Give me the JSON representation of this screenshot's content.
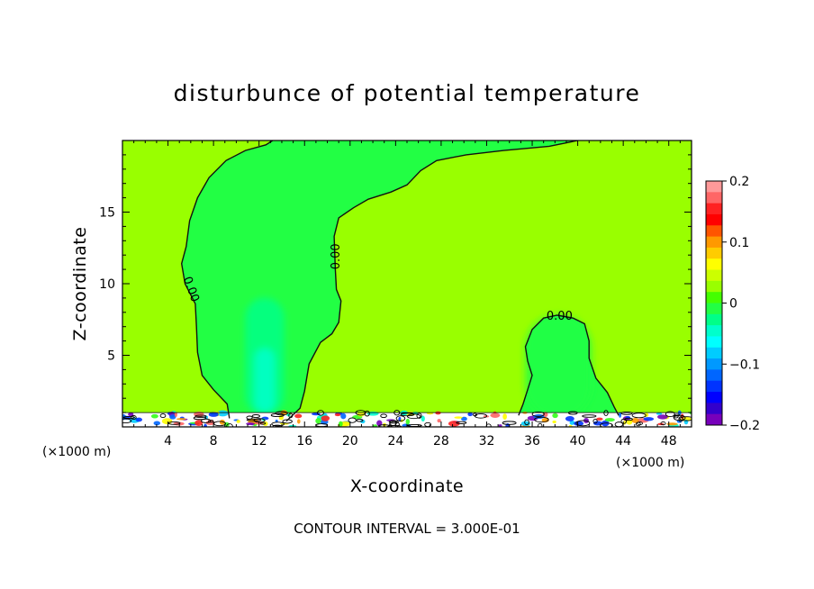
{
  "chart_data": {
    "type": "heatmap",
    "title": "disturbunce of potential temperature",
    "xlabel": "X-coordinate",
    "ylabel": "Z-coordinate",
    "x_unit": "(×1000 m)",
    "xlim": [
      0,
      50
    ],
    "ylim": [
      0,
      20
    ],
    "x_ticks": [
      4,
      8,
      12,
      16,
      20,
      24,
      28,
      32,
      36,
      40,
      44,
      48
    ],
    "y_ticks": [
      5,
      10,
      15
    ],
    "colorbar": {
      "range": [
        -0.2,
        0.2
      ],
      "tick_values": [
        0.2,
        0.1,
        0,
        -0.1,
        -0.2
      ],
      "tick_labels": [
        "0.2",
        "0.1",
        "0",
        "−0.1",
        "−0.2"
      ],
      "colors": [
        "#ff9999",
        "#ff6666",
        "#ff2222",
        "#ff0000",
        "#ff5500",
        "#ff9900",
        "#ffcc00",
        "#ffff00",
        "#ccff00",
        "#99ff00",
        "#44ff00",
        "#22ff44",
        "#00ff88",
        "#00ffcc",
        "#00ffff",
        "#00ccff",
        "#0099ff",
        "#0066ff",
        "#0033ff",
        "#0000ff",
        "#3300cc",
        "#7700bb"
      ]
    },
    "background_value": 0.02,
    "contour_levels": [
      "0.00",
      "0.00",
      "0.00"
    ],
    "contour_interval_note": "CONTOUR INTERVAL = 3.000E-01",
    "contours": [
      {
        "name": "zero-contour-left",
        "label": "0.00",
        "points": [
          [
            9.4,
            0.6
          ],
          [
            9.2,
            1.6
          ],
          [
            8,
            2.6
          ],
          [
            7,
            3.6
          ],
          [
            6.6,
            5.2
          ],
          [
            6.5,
            7
          ],
          [
            6.4,
            8.6
          ],
          [
            5.5,
            10
          ],
          [
            5.2,
            11.4
          ],
          [
            5.6,
            12.6
          ],
          [
            5.9,
            14.4
          ],
          [
            6.6,
            16
          ],
          [
            7.6,
            17.4
          ],
          [
            9.1,
            18.6
          ],
          [
            10.8,
            19.3
          ],
          [
            12.6,
            19.7
          ],
          [
            13.2,
            20
          ]
        ]
      },
      {
        "name": "zero-contour-center",
        "label": "0.00",
        "points": [
          [
            14.4,
            0.4
          ],
          [
            15.6,
            1.3
          ],
          [
            16,
            2.5
          ],
          [
            16.4,
            4.4
          ],
          [
            17.4,
            5.9
          ],
          [
            18.4,
            6.5
          ],
          [
            19,
            7.3
          ],
          [
            19.2,
            8.8
          ],
          [
            18.8,
            9.6
          ],
          [
            18.7,
            11
          ],
          [
            18.6,
            13.3
          ],
          [
            19,
            14.6
          ],
          [
            20.3,
            15.3
          ],
          [
            21.6,
            15.9
          ],
          [
            23.6,
            16.4
          ],
          [
            25,
            16.9
          ],
          [
            26.2,
            17.9
          ],
          [
            27.6,
            18.6
          ],
          [
            30.2,
            19
          ],
          [
            33.5,
            19.3
          ],
          [
            37.5,
            19.6
          ],
          [
            40,
            20
          ]
        ]
      },
      {
        "name": "zero-contour-right",
        "label": "0.00",
        "points": [
          [
            34.8,
            0.8
          ],
          [
            35.2,
            1.6
          ],
          [
            35.6,
            2.6
          ],
          [
            36,
            3.6
          ],
          [
            35.6,
            4.6
          ],
          [
            35.4,
            5.6
          ],
          [
            36,
            6.8
          ],
          [
            37,
            7.6
          ],
          [
            38.2,
            7.8
          ],
          [
            39.6,
            7.6
          ],
          [
            40.6,
            7.2
          ],
          [
            41,
            6
          ],
          [
            41,
            4.8
          ],
          [
            41.6,
            3.4
          ],
          [
            42.6,
            2.4
          ],
          [
            43.2,
            1.4
          ],
          [
            43.6,
            0.8
          ]
        ]
      }
    ],
    "plumes": [
      {
        "name": "plume-left",
        "value": -0.02,
        "x": [
          10.8,
          14.2
        ],
        "z": [
          0.8,
          9
        ]
      },
      {
        "name": "plume-left-core",
        "value": -0.05,
        "x": [
          11.6,
          13.4
        ],
        "z": [
          1,
          5.5
        ]
      },
      {
        "name": "plume-right",
        "value": -0.01,
        "x": [
          35.4,
          41.2
        ],
        "z": [
          0.6,
          7.8
        ]
      }
    ]
  }
}
